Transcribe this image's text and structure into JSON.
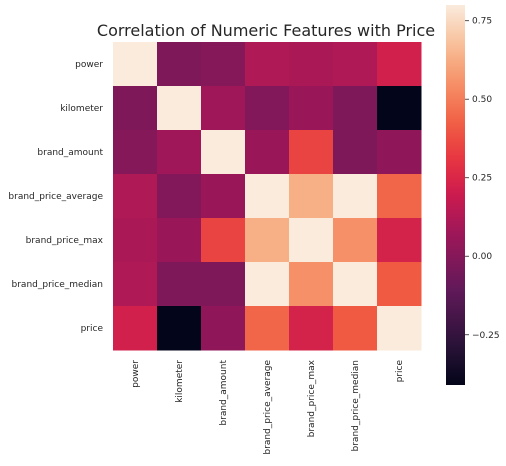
{
  "chart_data": {
    "type": "heatmap",
    "title": "Correlation of Numeric Features with Price",
    "rows": [
      "power",
      "kilometer",
      "brand_amount",
      "brand_price_average",
      "brand_price_max",
      "brand_price_median",
      "price"
    ],
    "columns": [
      "power",
      "kilometer",
      "brand_amount",
      "brand_price_average",
      "brand_price_max",
      "brand_price_median",
      "price"
    ],
    "values": [
      [
        1.0,
        -0.02,
        0.0,
        0.12,
        0.11,
        0.12,
        0.22
      ],
      [
        -0.02,
        1.0,
        0.08,
        -0.01,
        0.06,
        -0.02,
        -0.41
      ],
      [
        0.0,
        0.08,
        1.0,
        0.06,
        0.35,
        -0.02,
        0.03
      ],
      [
        0.12,
        -0.01,
        0.06,
        1.0,
        0.63,
        0.98,
        0.44
      ],
      [
        0.11,
        0.06,
        0.35,
        0.63,
        1.0,
        0.55,
        0.23
      ],
      [
        0.12,
        -0.02,
        -0.02,
        0.98,
        0.55,
        1.0,
        0.41
      ],
      [
        0.22,
        -0.41,
        0.03,
        0.44,
        0.23,
        0.41,
        1.0
      ]
    ],
    "colorbar": {
      "colormap": "rocket",
      "vmin": -0.41,
      "vmax": 0.8,
      "ticks": [
        -0.25,
        0.0,
        0.25,
        0.5,
        0.75
      ],
      "tick_labels": [
        "−0.25",
        "0.00",
        "0.25",
        "0.50",
        "0.75"
      ]
    }
  }
}
